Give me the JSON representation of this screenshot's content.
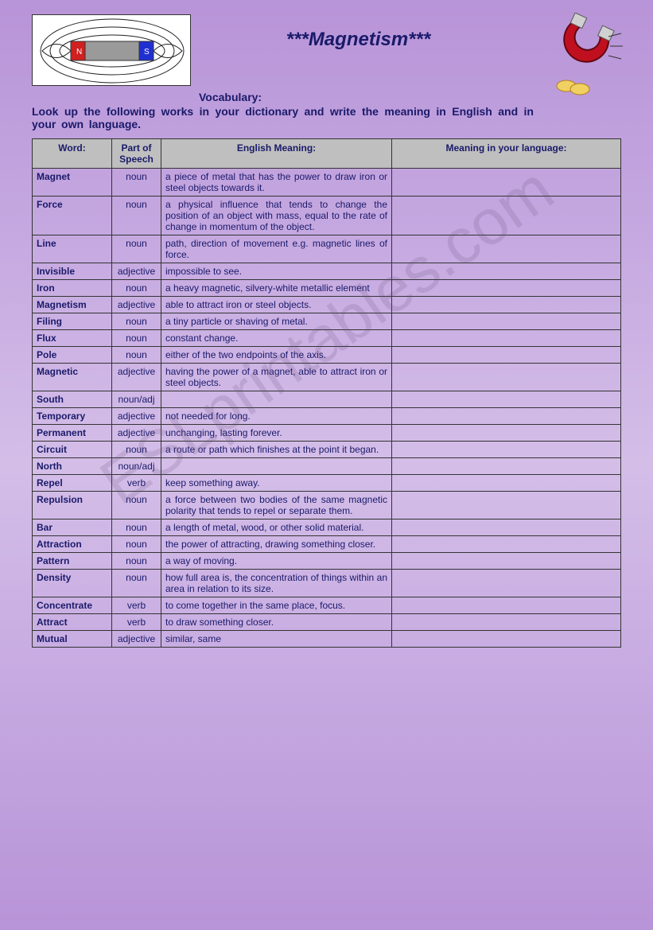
{
  "title": "***Magnetism***",
  "vocab_label": "Vocabulary:",
  "instructions": "Look up the following works in your dictionary and write the meaning in English and in your own language.",
  "watermark": "ESLprintables.com",
  "table": {
    "headers": {
      "word": "Word:",
      "pos": "Part of Speech",
      "english": "English Meaning:",
      "yourlang": "Meaning in your language:"
    },
    "rows": [
      {
        "word": "Magnet",
        "pos": "noun",
        "meaning": "a piece of metal that has the power to draw iron or steel objects towards it.",
        "yourlang": ""
      },
      {
        "word": "Force",
        "pos": "noun",
        "meaning": "a physical influence that tends to change the position of an object with mass, equal to the rate of change in momentum of the object.",
        "yourlang": ""
      },
      {
        "word": "Line",
        "pos": "noun",
        "meaning": "path, direction of movement e.g. magnetic lines of force.",
        "yourlang": ""
      },
      {
        "word": "Invisible",
        "pos": "adjective",
        "meaning": "impossible to see.",
        "yourlang": ""
      },
      {
        "word": "Iron",
        "pos": "noun",
        "meaning": "a heavy magnetic, silvery-white metallic element",
        "yourlang": ""
      },
      {
        "word": "Magnetism",
        "pos": "adjective",
        "meaning": "able to attract iron or steel objects.",
        "yourlang": ""
      },
      {
        "word": "Filing",
        "pos": "noun",
        "meaning": "a tiny particle or shaving of metal.",
        "yourlang": ""
      },
      {
        "word": "Flux",
        "pos": "noun",
        "meaning": "constant change.",
        "yourlang": ""
      },
      {
        "word": "Pole",
        "pos": "noun",
        "meaning": "either of the two endpoints of the axis.",
        "yourlang": ""
      },
      {
        "word": "Magnetic",
        "pos": "adjective",
        "meaning": "having the power of a magnet, able to attract iron or steel objects.",
        "yourlang": ""
      },
      {
        "word": "South",
        "pos": "noun/adj",
        "meaning": "",
        "yourlang": ""
      },
      {
        "word": "Temporary",
        "pos": "adjective",
        "meaning": "not needed for long.",
        "yourlang": ""
      },
      {
        "word": "Permanent",
        "pos": "adjective",
        "meaning": "unchanging, lasting forever.",
        "yourlang": ""
      },
      {
        "word": "Circuit",
        "pos": "noun",
        "meaning": "a route or path which finishes at the point it began.",
        "yourlang": ""
      },
      {
        "word": "North",
        "pos": "noun/adj",
        "meaning": "",
        "yourlang": ""
      },
      {
        "word": "Repel",
        "pos": "verb",
        "meaning": "keep something away.",
        "yourlang": ""
      },
      {
        "word": "Repulsion",
        "pos": "noun",
        "meaning": "a force between two bodies of the same magnetic polarity that tends to repel or separate them.",
        "yourlang": ""
      },
      {
        "word": "Bar",
        "pos": "noun",
        "meaning": "a length of metal, wood, or other solid material.",
        "yourlang": ""
      },
      {
        "word": "Attraction",
        "pos": "noun",
        "meaning": "the power of attracting, drawing something closer.",
        "yourlang": ""
      },
      {
        "word": "Pattern",
        "pos": "noun",
        "meaning": "a way of moving.",
        "yourlang": ""
      },
      {
        "word": "Density",
        "pos": "noun",
        "meaning": "how full area is, the concentration of things within an area in relation to its size.",
        "yourlang": ""
      },
      {
        "word": "Concentrate",
        "pos": "verb",
        "meaning": "to come together in the same place, focus.",
        "yourlang": ""
      },
      {
        "word": "Attract",
        "pos": "verb",
        "meaning": "to draw something closer.",
        "yourlang": ""
      },
      {
        "word": "Mutual",
        "pos": "adjective",
        "meaning": "similar, same",
        "yourlang": ""
      }
    ]
  },
  "magnet_diagram": {
    "north_color": "#d02020",
    "south_color": "#2030d0",
    "bar_color": "#9a9a9a",
    "field_line_color": "#202020"
  },
  "horseshoe": {
    "body_color": "#c01020",
    "tip_color": "#d0d0d0",
    "coin_color": "#f0d060"
  }
}
